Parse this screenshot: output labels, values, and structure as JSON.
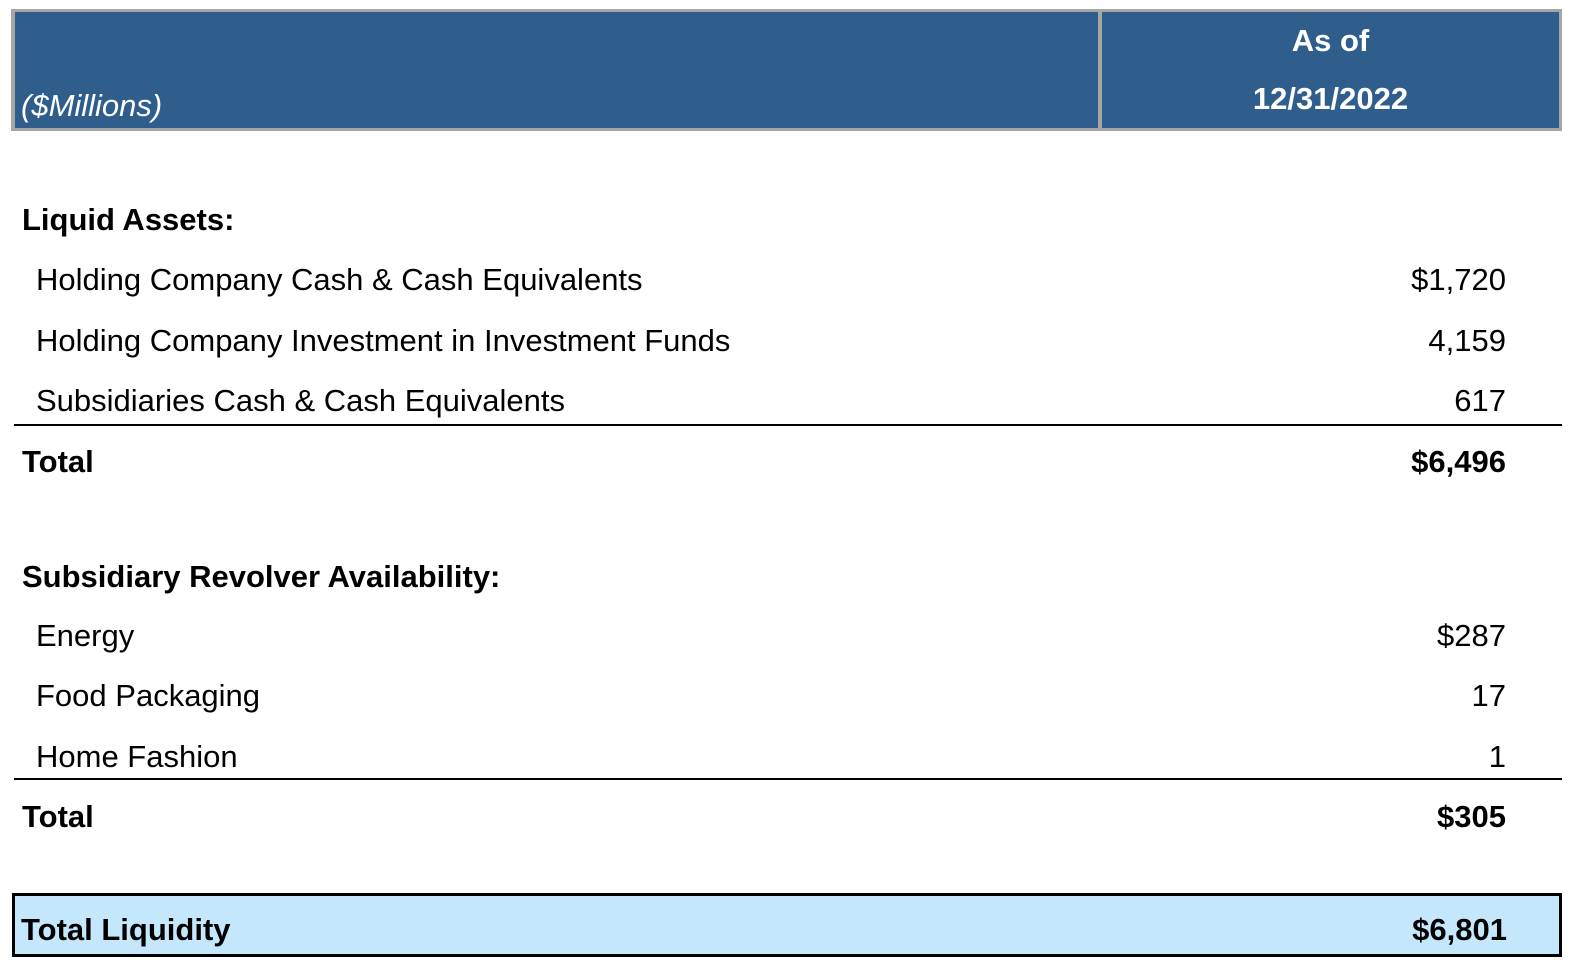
{
  "header": {
    "units": "($Millions)",
    "column_line1": "As of",
    "column_line2": "12/31/2022"
  },
  "liquid_assets": {
    "title": "Liquid Assets:",
    "items": [
      {
        "label": "Holding Company Cash & Cash Equivalents",
        "value": "$1,720"
      },
      {
        "label": "Holding Company Investment in Investment Funds",
        "value": "4,159"
      },
      {
        "label": "Subsidiaries Cash & Cash Equivalents",
        "value": "617"
      }
    ],
    "total_label": "Total",
    "total_value": "$6,496"
  },
  "revolver": {
    "title": "Subsidiary Revolver Availability:",
    "items": [
      {
        "label": "Energy",
        "value": "$287"
      },
      {
        "label": "Food Packaging",
        "value": "17"
      },
      {
        "label": "Home Fashion",
        "value": "1"
      }
    ],
    "total_label": "Total",
    "total_value": "$305"
  },
  "total_liquidity": {
    "label": "Total Liquidity",
    "value": "$6,801"
  },
  "colors": {
    "header_bg": "#2f5d8c",
    "header_border": "#a6a6a6",
    "highlight_bg": "#c5e7fb"
  }
}
